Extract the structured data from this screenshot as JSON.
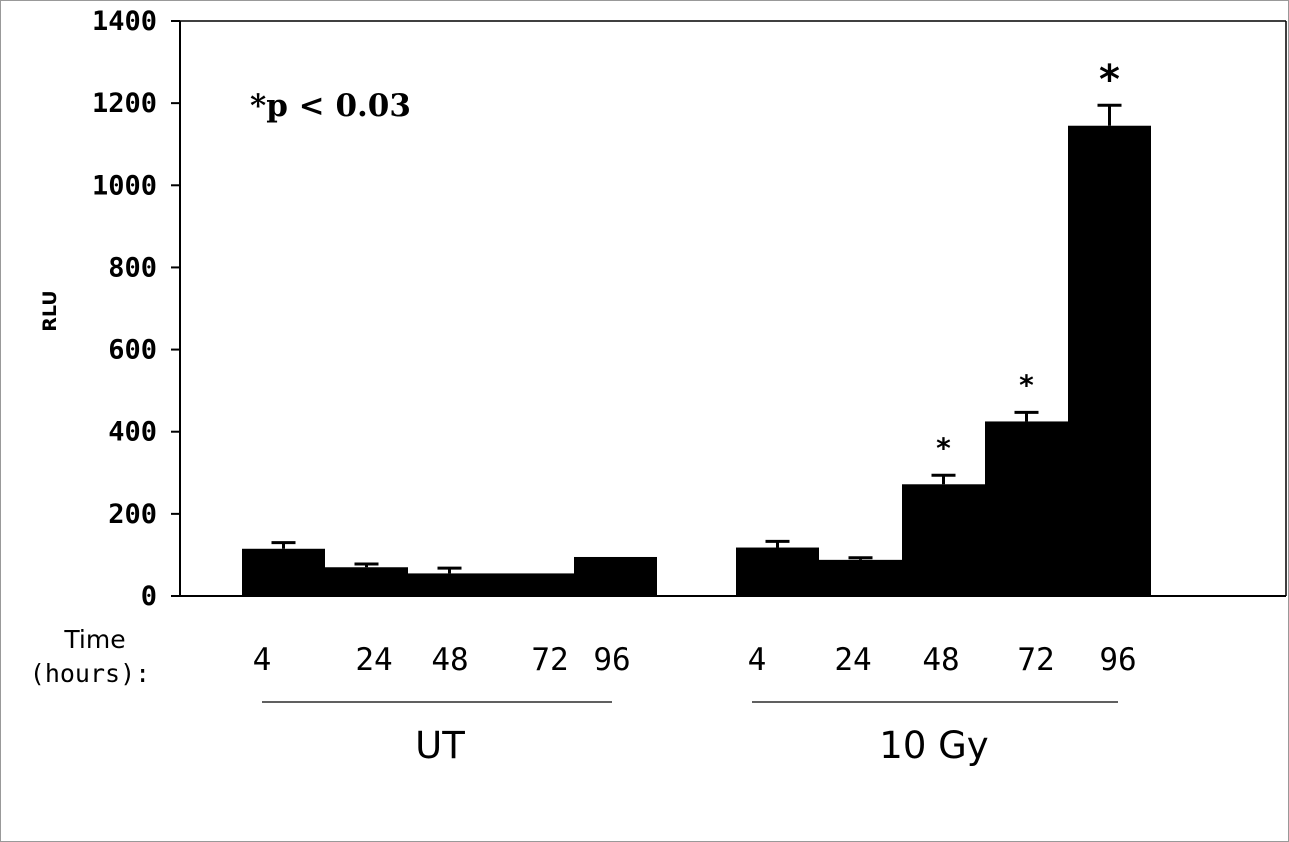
{
  "chart_data": {
    "type": "bar",
    "title": "",
    "xlabel": "",
    "ylabel": "RLU",
    "ylim": [
      0,
      1400
    ],
    "yticks": [
      0,
      200,
      400,
      600,
      800,
      1000,
      1200,
      1400
    ],
    "grid": false,
    "annotation": "*p < 0.03",
    "x_axis_title": [
      "Time",
      "(hours):"
    ],
    "groups": [
      {
        "label": "UT",
        "categories": [
          "4",
          "24",
          "48",
          "72",
          "96"
        ],
        "values": [
          115,
          70,
          55,
          55,
          95
        ],
        "errors": [
          15,
          8,
          13,
          0,
          0
        ],
        "significant": [
          false,
          false,
          false,
          false,
          false
        ]
      },
      {
        "label": "10 Gy",
        "categories": [
          "4",
          "24",
          "48",
          "72",
          "96"
        ],
        "values": [
          118,
          88,
          272,
          425,
          1145
        ],
        "errors": [
          15,
          5,
          22,
          22,
          50
        ],
        "significant": [
          false,
          false,
          true,
          true,
          true
        ]
      }
    ],
    "significance_marker": "*",
    "bar_color": "#000000"
  }
}
